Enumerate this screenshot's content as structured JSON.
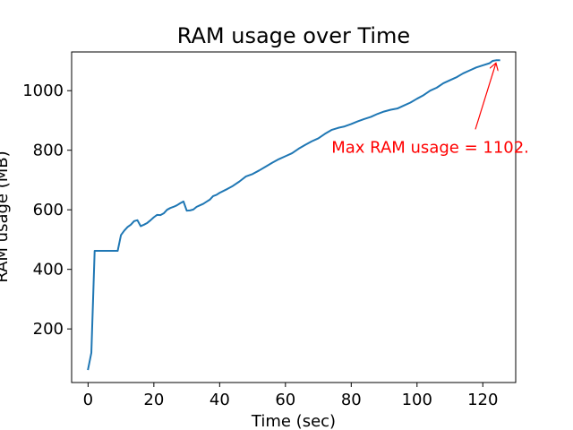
{
  "chart_data": {
    "type": "line",
    "title": "RAM usage over Time",
    "xlabel": "Time (sec)",
    "ylabel": "RAM usage (MB)",
    "xlim": [
      -5,
      130
    ],
    "ylim": [
      20,
      1130
    ],
    "xticks": [
      0,
      20,
      40,
      60,
      80,
      100,
      120
    ],
    "yticks": [
      200,
      400,
      600,
      800,
      1000
    ],
    "grid": false,
    "series": [
      {
        "color": "#1f77b4",
        "x": [
          0,
          1,
          2,
          3,
          4,
          5,
          6,
          7,
          8,
          9,
          10,
          11,
          12,
          13,
          14,
          15,
          16,
          17,
          18,
          19,
          20,
          21,
          22,
          23,
          24,
          25,
          26,
          27,
          28,
          29,
          30,
          31,
          32,
          33,
          34,
          35,
          36,
          37,
          38,
          39,
          40,
          42,
          44,
          46,
          48,
          50,
          52,
          54,
          56,
          58,
          60,
          62,
          64,
          66,
          68,
          70,
          72,
          74,
          76,
          78,
          80,
          82,
          84,
          86,
          88,
          90,
          92,
          94,
          96,
          98,
          100,
          102,
          104,
          106,
          108,
          110,
          112,
          114,
          116,
          118,
          120,
          122,
          123,
          124,
          125
        ],
        "y": [
          65,
          120,
          462,
          462,
          462,
          462,
          462,
          462,
          462,
          462,
          515,
          530,
          542,
          550,
          562,
          565,
          545,
          550,
          556,
          565,
          575,
          583,
          582,
          588,
          600,
          606,
          610,
          615,
          622,
          628,
          597,
          598,
          601,
          610,
          615,
          620,
          627,
          634,
          646,
          650,
          657,
          668,
          680,
          695,
          712,
          720,
          732,
          745,
          758,
          770,
          780,
          790,
          805,
          818,
          830,
          840,
          855,
          868,
          875,
          880,
          888,
          897,
          905,
          912,
          922,
          930,
          936,
          940,
          950,
          960,
          973,
          985,
          1000,
          1010,
          1025,
          1035,
          1045,
          1058,
          1068,
          1078,
          1085,
          1092,
          1100,
          1102,
          1102
        ]
      }
    ],
    "annotation": {
      "text": "Max RAM usage = 1102.",
      "x": 124,
      "y": 1102,
      "text_x": 74,
      "text_y": 810,
      "color": "#ff0000"
    }
  }
}
